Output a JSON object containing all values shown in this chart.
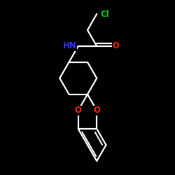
{
  "background": "#000000",
  "bond_color": "#ffffff",
  "bond_lw": 1.6,
  "colors": {
    "Cl": "#00cc00",
    "O": "#ff2200",
    "N": "#3333ff"
  },
  "figsize": [
    2.5,
    2.5
  ],
  "dpi": 100
}
